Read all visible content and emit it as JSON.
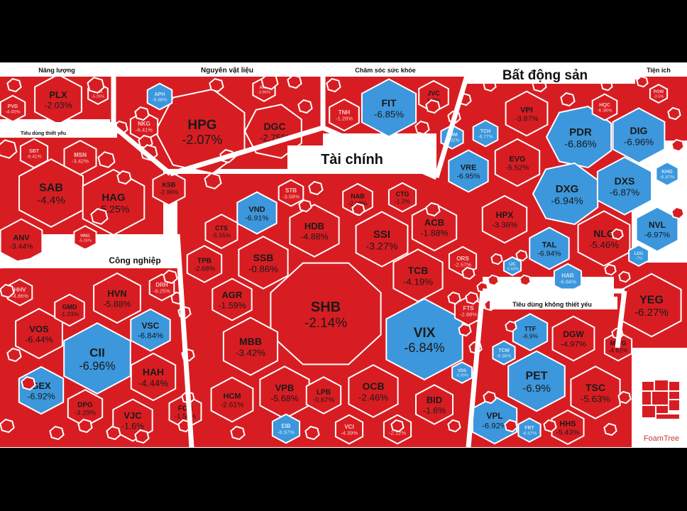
{
  "colors": {
    "down": "#d81d22",
    "floor": "#3c97dc",
    "bg": "#ffffff",
    "frame": "#000000",
    "divider": "#f0f0f0"
  },
  "branding": {
    "label": "FoamTree"
  },
  "chart_data": {
    "type": "treemap",
    "groups": [
      {
        "name": "Năng lượng",
        "stocks": [
          {
            "ticker": "PLX",
            "change": "-2.03%"
          },
          {
            "ticker": "PVD",
            "change": "-4.45%"
          },
          {
            "ticker": "BSR",
            "change": "-5.26%"
          }
        ]
      },
      {
        "name": "Tiêu dùng thiết yếu",
        "stocks": [
          {
            "ticker": "SAB",
            "change": "-4.4%"
          },
          {
            "ticker": "HAG",
            "change": "-5.25%"
          },
          {
            "ticker": "ANV",
            "change": "-3.44%"
          },
          {
            "ticker": "MSN",
            "change": "-3.42%"
          },
          {
            "ticker": "SBT",
            "change": "-6.41%"
          },
          {
            "ticker": "HNG",
            "change": "-5.26%"
          }
        ]
      },
      {
        "name": "Nguyên vật liệu",
        "stocks": [
          {
            "ticker": "HPG",
            "change": "-2.07%"
          },
          {
            "ticker": "DGC",
            "change": "-2.75%"
          },
          {
            "ticker": "KSB",
            "change": "-2.96%"
          },
          {
            "ticker": "NKG",
            "change": "-6.41%"
          },
          {
            "ticker": "APH",
            "change": "-6.88%"
          },
          {
            "ticker": "AAA",
            "change": "-3.86%"
          }
        ]
      },
      {
        "name": "Chăm sóc sức khỏe",
        "stocks": [
          {
            "ticker": "FIT",
            "change": "-6.85%"
          },
          {
            "ticker": "JVC",
            "change": "1.2%"
          },
          {
            "ticker": "TNH",
            "change": "-1.28%"
          }
        ]
      },
      {
        "name": "Bất động sản",
        "stocks": [
          {
            "ticker": "VPI",
            "change": "-3.87%"
          },
          {
            "ticker": "PDR",
            "change": "-6.86%"
          },
          {
            "ticker": "DIG",
            "change": "-6.96%"
          },
          {
            "ticker": "EVG",
            "change": "-5.52%"
          },
          {
            "ticker": "VRE",
            "change": "-6.95%"
          },
          {
            "ticker": "DXG",
            "change": "-6.94%"
          },
          {
            "ticker": "DXS",
            "change": "-6.87%"
          },
          {
            "ticker": "HPX",
            "change": "-3.36%"
          },
          {
            "ticker": "NLG",
            "change": "-5.46%"
          },
          {
            "ticker": "NVL",
            "change": "-6.97%"
          },
          {
            "ticker": "TAL",
            "change": "-6.94%"
          },
          {
            "ticker": "HAR",
            "change": "-6.84%"
          },
          {
            "ticker": "TCH",
            "change": "-6.77%"
          },
          {
            "ticker": "VHM",
            "change": "-6.92%"
          },
          {
            "ticker": "HQC",
            "change": "-6.36%"
          },
          {
            "ticker": "KHG",
            "change": "-6.87%"
          },
          {
            "ticker": "LDG",
            "change": "-7%"
          },
          {
            "ticker": "IJC",
            "change": "-6.94%"
          }
        ]
      },
      {
        "name": "Tiện ích",
        "stocks": [
          {
            "ticker": "POW",
            "change": "-3.5%"
          }
        ]
      },
      {
        "name": "Tài chính",
        "stocks": [
          {
            "ticker": "SHB",
            "change": "-2.14%"
          },
          {
            "ticker": "VIX",
            "change": "-6.84%"
          },
          {
            "ticker": "SSI",
            "change": "-3.27%"
          },
          {
            "ticker": "HDB",
            "change": "-4.88%"
          },
          {
            "ticker": "SSB",
            "change": "-0.86%"
          },
          {
            "ticker": "TCB",
            "change": "-4.19%"
          },
          {
            "ticker": "ACB",
            "change": "-1.88%"
          },
          {
            "ticker": "MBB",
            "change": "-3.42%"
          },
          {
            "ticker": "AGR",
            "change": "-1.59%"
          },
          {
            "ticker": "VND",
            "change": "-6.91%"
          },
          {
            "ticker": "TPB",
            "change": "-2.68%"
          },
          {
            "ticker": "CTS",
            "change": "-5.55%"
          },
          {
            "ticker": "NAB",
            "change": "-2.08%"
          },
          {
            "ticker": "CTG",
            "change": "-1.2%"
          },
          {
            "ticker": "STB",
            "change": "-3.58%"
          },
          {
            "ticker": "VPB",
            "change": "-5.68%"
          },
          {
            "ticker": "HCM",
            "change": "-2.61%"
          },
          {
            "ticker": "LPB",
            "change": "-0.67%"
          },
          {
            "ticker": "OCB",
            "change": "-2.46%"
          },
          {
            "ticker": "BID",
            "change": "-1.6%"
          },
          {
            "ticker": "EIB",
            "change": "-6.97%"
          },
          {
            "ticker": "VCI",
            "change": "-4.39%"
          },
          {
            "ticker": "TCX",
            "change": "-2.12%"
          },
          {
            "ticker": "FTS",
            "change": "-2.88%"
          },
          {
            "ticker": "ORS",
            "change": "-2.57%"
          },
          {
            "ticker": "VDS",
            "change": "-6.99%"
          }
        ]
      },
      {
        "name": "Công nghiệp",
        "stocks": [
          {
            "ticker": "CII",
            "change": "-6.96%"
          },
          {
            "ticker": "HVN",
            "change": "-5.88%"
          },
          {
            "ticker": "VOS",
            "change": "-6.44%"
          },
          {
            "ticker": "VSC",
            "change": "-6.84%"
          },
          {
            "ticker": "GEX",
            "change": "-6.92%"
          },
          {
            "ticker": "HAH",
            "change": "-4.44%"
          },
          {
            "ticker": "GMD",
            "change": "-1.03%"
          },
          {
            "ticker": "DPG",
            "change": "-3.29%"
          },
          {
            "ticker": "VJC",
            "change": "-1.6%"
          },
          {
            "ticker": "FCN",
            "change": "-1.58%"
          },
          {
            "ticker": "DRH",
            "change": "-6.25%"
          },
          {
            "ticker": "HHV",
            "change": "-4.86%"
          }
        ]
      },
      {
        "name": "Tiêu dùng không thiết yếu",
        "stocks": [
          {
            "ticker": "YEG",
            "change": "-6.27%"
          },
          {
            "ticker": "PET",
            "change": "-6.9%"
          },
          {
            "ticker": "DGW",
            "change": "-4.97%"
          },
          {
            "ticker": "TSC",
            "change": "-5.63%"
          },
          {
            "ticker": "TTF",
            "change": "-6.9%"
          },
          {
            "ticker": "MWG",
            "change": "-4.62%"
          },
          {
            "ticker": "VPL",
            "change": "-6.92%"
          },
          {
            "ticker": "HHS",
            "change": "-5.43%"
          },
          {
            "ticker": "FRT",
            "change": "-6.67%"
          },
          {
            "ticker": "TCM",
            "change": "-6.88%"
          }
        ]
      }
    ]
  }
}
